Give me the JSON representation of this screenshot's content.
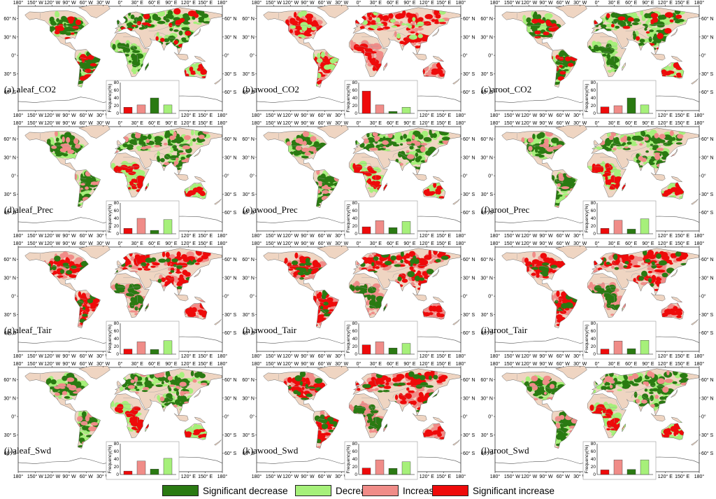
{
  "colors": {
    "significant_decrease": "#2a7a12",
    "decrease": "#a6f07a",
    "increase": "#f08c88",
    "significant_increase": "#ee0a0a",
    "land_base": "#efd5c2",
    "coast": "#6e6e6e"
  },
  "axis_ticks": {
    "lon": [
      "180°",
      "150° W",
      "120° W",
      "90° W",
      "60° W",
      "30° W",
      "0°",
      "30° E",
      "60° E",
      "90° E",
      "120° E",
      "150° E",
      "180°"
    ],
    "lat_left": [
      "60° N",
      "30° N",
      "0°",
      "30° S",
      "60° S"
    ],
    "lat_right": [
      "60° N",
      "30° N",
      "0°",
      "30° S",
      "60° S"
    ]
  },
  "inset": {
    "ylabel": "Frequency(%)",
    "yticks": [
      "0",
      "20",
      "40",
      "60",
      "80"
    ],
    "xticks": [
      "0°",
      "30° E",
      "60° E",
      "90° E"
    ]
  },
  "legend": [
    {
      "key": "significant_decrease",
      "label": "Significant decrease"
    },
    {
      "key": "decrease",
      "label": "Decrease"
    },
    {
      "key": "increase",
      "label": "Increase"
    },
    {
      "key": "significant_increase",
      "label": "Significant increase"
    }
  ],
  "panels": [
    {
      "label": "(a) aleaf_CO2",
      "scheme": "green",
      "freq": [
        16,
        22,
        40,
        22
      ]
    },
    {
      "label": "(b)awood_CO2",
      "scheme": "red",
      "freq": [
        58,
        22,
        5,
        16
      ]
    },
    {
      "label": "(c)aroot_CO2",
      "scheme": "green",
      "freq": [
        17,
        20,
        40,
        22
      ]
    },
    {
      "label": "(d)aleaf_Prec",
      "scheme": "mix",
      "freq": [
        14,
        40,
        9,
        37
      ]
    },
    {
      "label": "(e)awood_Prec",
      "scheme": "mix",
      "freq": [
        18,
        34,
        16,
        32
      ]
    },
    {
      "label": "(f)aroot_Prec",
      "scheme": "mix",
      "freq": [
        14,
        35,
        12,
        39
      ]
    },
    {
      "label": "(g)aleaf_Tair",
      "scheme": "redmix",
      "freq": [
        13,
        32,
        12,
        35
      ]
    },
    {
      "label": "(h)awood_Tair",
      "scheme": "redmix",
      "freq": [
        24,
        32,
        16,
        28
      ]
    },
    {
      "label": "(i)aroot_Tair",
      "scheme": "redmix",
      "freq": [
        13,
        34,
        14,
        36
      ]
    },
    {
      "label": "(j)aleaf_Swd",
      "scheme": "mix",
      "freq": [
        9,
        35,
        14,
        42
      ]
    },
    {
      "label": "(k)awood_Swd",
      "scheme": "redmix",
      "freq": [
        17,
        38,
        16,
        33
      ]
    },
    {
      "label": "(l)aroot_Swd",
      "scheme": "mix",
      "freq": [
        12,
        38,
        13,
        38
      ]
    }
  ]
}
